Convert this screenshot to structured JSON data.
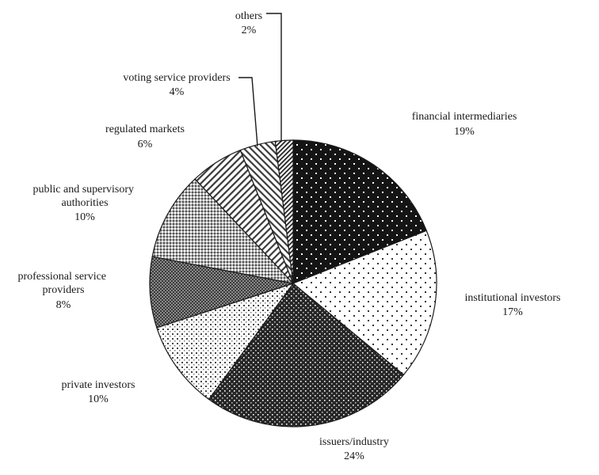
{
  "chart_data": {
    "type": "pie",
    "start_angle_deg": 0,
    "direction": "clockwise",
    "slices": [
      {
        "label": "financial intermediaries",
        "value": 19,
        "value_text": "19%",
        "pattern": "dark-dots"
      },
      {
        "label": "institutional investors",
        "value": 17,
        "value_text": "17%",
        "pattern": "light-sparse-dots"
      },
      {
        "label": "issuers/industry",
        "value": 24,
        "value_text": "24%",
        "pattern": "dark-dense-dots"
      },
      {
        "label": "private investors",
        "value": 10,
        "value_text": "10%",
        "pattern": "light-dense-dots"
      },
      {
        "label": "professional service providers",
        "value": 8,
        "value_text": "8%",
        "pattern": "dark-checker"
      },
      {
        "label": "public and supervisory authorities",
        "value": 10,
        "value_text": "10%",
        "pattern": "grey-checker"
      },
      {
        "label": "regulated markets",
        "value": 6,
        "value_text": "6%",
        "pattern": "diagonal-hatch-left"
      },
      {
        "label": "voting service providers",
        "value": 4,
        "value_text": "4%",
        "pattern": "diagonal-hatch-right"
      },
      {
        "label": "others",
        "value": 2,
        "value_text": "2%",
        "pattern": "diagonal-hatch-dense"
      }
    ]
  }
}
